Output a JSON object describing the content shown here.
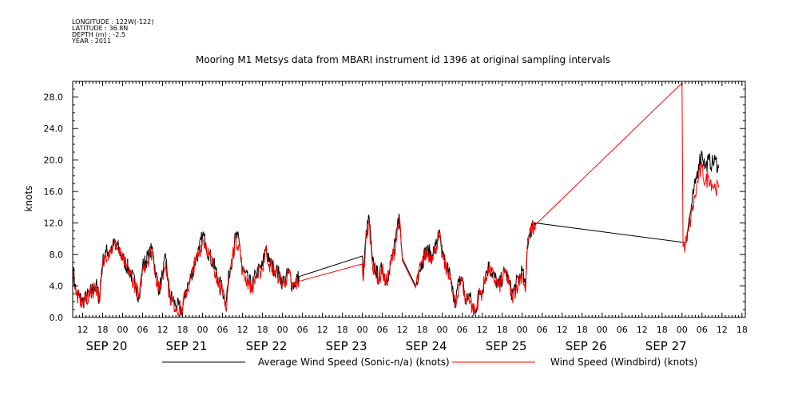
{
  "meta": {
    "longitude": "LONGITUDE : 122W(-122)",
    "latitude": "LATITUDE : 36.8N",
    "depth": "DEPTH (m) : -2.5",
    "year": "YEAR : 2011"
  },
  "chart_data": {
    "type": "line",
    "title": "Mooring M1 Metsys data from MBARI instrument id 1396 at original sampling intervals",
    "xlabel": "",
    "ylabel": "knots",
    "xlim_hours": [
      9,
      211
    ],
    "ylim": [
      0,
      30
    ],
    "yticks": [
      "0.0",
      "4.0",
      "8.0",
      "12.0",
      "16.0",
      "20.0",
      "24.0",
      "28.0"
    ],
    "hour_ticks": [
      {
        "t": 12,
        "label": "12"
      },
      {
        "t": 18,
        "label": "18"
      },
      {
        "t": 24,
        "label": "00"
      },
      {
        "t": 30,
        "label": "06"
      },
      {
        "t": 36,
        "label": "12"
      },
      {
        "t": 42,
        "label": "18"
      },
      {
        "t": 48,
        "label": "00"
      },
      {
        "t": 54,
        "label": "06"
      },
      {
        "t": 60,
        "label": "12"
      },
      {
        "t": 66,
        "label": "18"
      },
      {
        "t": 72,
        "label": "00"
      },
      {
        "t": 78,
        "label": "06"
      },
      {
        "t": 84,
        "label": "12"
      },
      {
        "t": 90,
        "label": "18"
      },
      {
        "t": 96,
        "label": "00"
      },
      {
        "t": 102,
        "label": "06"
      },
      {
        "t": 108,
        "label": "12"
      },
      {
        "t": 114,
        "label": "18"
      },
      {
        "t": 120,
        "label": "00"
      },
      {
        "t": 126,
        "label": "06"
      },
      {
        "t": 132,
        "label": "12"
      },
      {
        "t": 138,
        "label": "18"
      },
      {
        "t": 144,
        "label": "00"
      },
      {
        "t": 150,
        "label": "06"
      },
      {
        "t": 156,
        "label": "12"
      },
      {
        "t": 162,
        "label": "18"
      },
      {
        "t": 168,
        "label": "00"
      },
      {
        "t": 174,
        "label": "06"
      },
      {
        "t": 180,
        "label": "12"
      },
      {
        "t": 186,
        "label": "18"
      },
      {
        "t": 192,
        "label": "00"
      },
      {
        "t": 198,
        "label": "06"
      },
      {
        "t": 204,
        "label": "12"
      },
      {
        "t": 210,
        "label": "18"
      }
    ],
    "day_labels": [
      {
        "t": 12,
        "label": "SEP 20"
      },
      {
        "t": 36,
        "label": "SEP 21"
      },
      {
        "t": 60,
        "label": "SEP 22"
      },
      {
        "t": 84,
        "label": "SEP 23"
      },
      {
        "t": 108,
        "label": "SEP 24"
      },
      {
        "t": 132,
        "label": "SEP 25"
      },
      {
        "t": 156,
        "label": "SEP 26"
      },
      {
        "t": 180,
        "label": "SEP 27"
      }
    ],
    "series": [
      {
        "name": "Average Wind Speed (Sonic-n/a) (knots)",
        "color": "#000000",
        "points": [
          [
            9,
            6.6
          ],
          [
            10,
            3.2
          ],
          [
            12,
            2.0
          ],
          [
            14,
            3.0
          ],
          [
            16,
            4.2
          ],
          [
            17,
            2.4
          ],
          [
            18,
            7.0
          ],
          [
            19,
            8.3
          ],
          [
            21,
            9.0
          ],
          [
            22,
            9.5
          ],
          [
            24,
            7.5
          ],
          [
            26,
            6.0
          ],
          [
            28,
            4.0
          ],
          [
            29,
            2.5
          ],
          [
            30,
            6.5
          ],
          [
            32,
            8.0
          ],
          [
            33,
            8.8
          ],
          [
            34,
            5.5
          ],
          [
            35,
            3.5
          ],
          [
            36,
            5.5
          ],
          [
            37,
            7.5
          ],
          [
            38,
            3.0
          ],
          [
            40,
            1.5
          ],
          [
            42,
            1.0
          ],
          [
            43,
            3.5
          ],
          [
            44,
            4.5
          ],
          [
            46,
            7.5
          ],
          [
            47,
            8.5
          ],
          [
            48,
            10.5
          ],
          [
            49,
            9.5
          ],
          [
            50,
            8.0
          ],
          [
            52,
            6.0
          ],
          [
            53,
            4.5
          ],
          [
            54,
            3.5
          ],
          [
            55,
            2.0
          ],
          [
            56,
            5.5
          ],
          [
            57,
            8.0
          ],
          [
            58,
            10.5
          ],
          [
            59,
            9.5
          ],
          [
            60,
            6.0
          ],
          [
            62,
            4.5
          ],
          [
            63,
            4.0
          ],
          [
            64,
            5.5
          ],
          [
            66,
            6.5
          ],
          [
            67,
            9.0
          ],
          [
            68,
            7.0
          ],
          [
            70,
            6.0
          ],
          [
            71,
            5.5
          ],
          [
            72,
            4.5
          ],
          [
            73,
            5.0
          ],
          [
            74,
            5.8
          ],
          [
            75,
            4.0
          ],
          [
            77,
            5.2
          ],
          [
            96,
            7.8
          ],
          [
            96.3,
            5.0
          ],
          [
            97,
            10.0
          ],
          [
            98,
            12.8
          ],
          [
            98.5,
            10.0
          ],
          [
            99,
            7.0
          ],
          [
            100,
            6.0
          ],
          [
            101,
            5.0
          ],
          [
            102,
            6.5
          ],
          [
            103,
            4.5
          ],
          [
            104,
            6.0
          ],
          [
            106,
            9.5
          ],
          [
            107,
            13.2
          ],
          [
            108,
            7.5
          ],
          [
            112,
            4.0
          ],
          [
            113,
            6.0
          ],
          [
            114,
            7.0
          ],
          [
            115,
            8.5
          ],
          [
            117,
            8.0
          ],
          [
            118,
            9.0
          ],
          [
            119,
            10.8
          ],
          [
            120,
            8.0
          ],
          [
            121,
            6.5
          ],
          [
            122,
            6.0
          ],
          [
            123,
            3.5
          ],
          [
            124,
            2.0
          ],
          [
            125,
            4.5
          ],
          [
            126,
            5.0
          ],
          [
            127,
            2.0
          ],
          [
            128,
            3.0
          ],
          [
            129,
            1.5
          ],
          [
            130,
            1.0
          ],
          [
            131,
            3.0
          ],
          [
            132,
            3.5
          ],
          [
            133,
            5.5
          ],
          [
            134,
            6.5
          ],
          [
            137,
            4.0
          ],
          [
            139,
            6.0
          ],
          [
            140,
            4.5
          ],
          [
            141,
            3.0
          ],
          [
            144,
            6.0
          ],
          [
            145,
            3.5
          ],
          [
            145.5,
            9.0
          ],
          [
            146,
            10.5
          ],
          [
            147,
            11.5
          ],
          [
            148,
            12.0
          ],
          [
            193,
            9.5
          ],
          [
            194,
            12.0
          ],
          [
            195,
            14.5
          ],
          [
            196,
            17.0
          ],
          [
            197,
            19.5
          ],
          [
            198,
            21.0
          ],
          [
            199,
            19.0
          ],
          [
            200,
            20.0
          ],
          [
            201,
            19.5
          ],
          [
            202,
            20.0
          ],
          [
            203,
            19.0
          ]
        ]
      },
      {
        "name": "Wind Speed (Windbird) (knots)",
        "color": "#ff0000",
        "points": [
          [
            9,
            6.0
          ],
          [
            10,
            2.8
          ],
          [
            12,
            1.8
          ],
          [
            14,
            2.8
          ],
          [
            16,
            4.0
          ],
          [
            17,
            2.2
          ],
          [
            18,
            6.8
          ],
          [
            19,
            8.0
          ],
          [
            21,
            8.8
          ],
          [
            22,
            9.3
          ],
          [
            24,
            7.2
          ],
          [
            26,
            5.8
          ],
          [
            28,
            3.8
          ],
          [
            29,
            2.3
          ],
          [
            30,
            6.2
          ],
          [
            32,
            7.8
          ],
          [
            33,
            8.5
          ],
          [
            34,
            5.2
          ],
          [
            35,
            3.3
          ],
          [
            36,
            5.2
          ],
          [
            37,
            7.2
          ],
          [
            38,
            2.8
          ],
          [
            40,
            1.3
          ],
          [
            42,
            0.8
          ],
          [
            43,
            3.2
          ],
          [
            44,
            4.2
          ],
          [
            46,
            7.2
          ],
          [
            47,
            8.2
          ],
          [
            48,
            10.0
          ],
          [
            49,
            9.2
          ],
          [
            50,
            7.8
          ],
          [
            52,
            5.8
          ],
          [
            53,
            4.2
          ],
          [
            54,
            3.2
          ],
          [
            55,
            1.0
          ],
          [
            56,
            5.2
          ],
          [
            57,
            7.8
          ],
          [
            58,
            10.0
          ],
          [
            59,
            9.2
          ],
          [
            60,
            5.8
          ],
          [
            62,
            4.2
          ],
          [
            63,
            3.8
          ],
          [
            64,
            5.2
          ],
          [
            66,
            6.2
          ],
          [
            67,
            8.8
          ],
          [
            68,
            6.8
          ],
          [
            70,
            5.8
          ],
          [
            71,
            5.2
          ],
          [
            72,
            4.2
          ],
          [
            73,
            4.8
          ],
          [
            74,
            5.5
          ],
          [
            75,
            3.8
          ],
          [
            77,
            4.6
          ],
          [
            96,
            6.8
          ],
          [
            96.3,
            4.6
          ],
          [
            97,
            9.5
          ],
          [
            98,
            12.2
          ],
          [
            98.5,
            9.5
          ],
          [
            99,
            6.8
          ],
          [
            100,
            5.8
          ],
          [
            101,
            4.8
          ],
          [
            102,
            6.2
          ],
          [
            103,
            4.2
          ],
          [
            104,
            5.8
          ],
          [
            106,
            9.2
          ],
          [
            107,
            12.8
          ],
          [
            108,
            7.2
          ],
          [
            112,
            3.8
          ],
          [
            113,
            5.8
          ],
          [
            114,
            6.8
          ],
          [
            115,
            8.2
          ],
          [
            117,
            7.8
          ],
          [
            118,
            8.8
          ],
          [
            119,
            10.5
          ],
          [
            120,
            7.8
          ],
          [
            121,
            6.2
          ],
          [
            122,
            5.8
          ],
          [
            123,
            3.2
          ],
          [
            124,
            1.2
          ],
          [
            125,
            4.2
          ],
          [
            126,
            4.8
          ],
          [
            127,
            1.8
          ],
          [
            128,
            2.8
          ],
          [
            129,
            1.2
          ],
          [
            130,
            0.6
          ],
          [
            131,
            2.8
          ],
          [
            132,
            3.2
          ],
          [
            133,
            5.2
          ],
          [
            134,
            6.2
          ],
          [
            137,
            3.8
          ],
          [
            139,
            5.8
          ],
          [
            140,
            4.2
          ],
          [
            141,
            2.6
          ],
          [
            144,
            5.6
          ],
          [
            145,
            3.2
          ],
          [
            145.5,
            8.8
          ],
          [
            146,
            10.2
          ],
          [
            147,
            11.2
          ],
          [
            148,
            11.8
          ],
          [
            192,
            29.8
          ],
          [
            192.3,
            9.0
          ],
          [
            193,
            9.2
          ],
          [
            194,
            11.0
          ],
          [
            195,
            13.5
          ],
          [
            196,
            15.5
          ],
          [
            197,
            18.0
          ],
          [
            198,
            19.0
          ],
          [
            199,
            17.0
          ],
          [
            200,
            18.0
          ],
          [
            201,
            17.0
          ],
          [
            202,
            16.5
          ],
          [
            203,
            16.5
          ]
        ]
      }
    ]
  }
}
